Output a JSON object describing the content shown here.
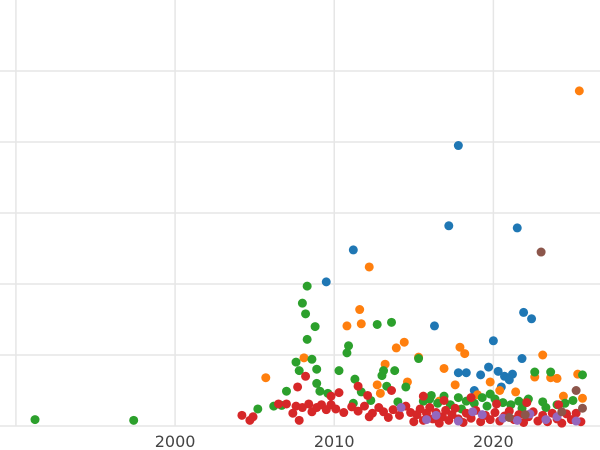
{
  "chart_data": {
    "type": "scatter",
    "title": "",
    "xlabel": "",
    "ylabel": "",
    "grid": true,
    "legend": "none",
    "xlim": [
      1989,
      2026.7
    ],
    "ylim": [
      0,
      60
    ],
    "x_ticks": [
      {
        "value": 2000,
        "label": "2000"
      },
      {
        "value": 2010,
        "label": "2010"
      },
      {
        "value": 2020,
        "label": "2020"
      }
    ],
    "y_gridlines": [
      0,
      10,
      20,
      30,
      40,
      50
    ],
    "x_gridlines": [
      1990,
      2000,
      2010,
      2020
    ],
    "series": [
      {
        "color": "#1f77b4",
        "points": [
          [
            2009.5,
            20.3
          ],
          [
            2011.2,
            24.8
          ],
          [
            2016.3,
            14.1
          ],
          [
            2017.2,
            28.2
          ],
          [
            2017.8,
            39.5
          ],
          [
            2018.3,
            7.5
          ],
          [
            2019.2,
            7.2
          ],
          [
            2019.7,
            8.3
          ],
          [
            2020.0,
            12.0
          ],
          [
            2020.3,
            7.7
          ],
          [
            2020.7,
            7.0
          ],
          [
            2021.2,
            7.3
          ],
          [
            2021.5,
            27.9
          ],
          [
            2021.8,
            9.5
          ],
          [
            2021.9,
            16.0
          ],
          [
            2022.4,
            15.1
          ],
          [
            2017.8,
            7.5
          ],
          [
            2018.8,
            5.0
          ],
          [
            2020.5,
            5.5
          ],
          [
            2021.0,
            6.5
          ]
        ]
      },
      {
        "color": "#ff7f0e",
        "points": [
          [
            2005.7,
            6.8
          ],
          [
            2008.1,
            9.6
          ],
          [
            2010.8,
            14.1
          ],
          [
            2011.6,
            16.4
          ],
          [
            2011.7,
            14.4
          ],
          [
            2012.2,
            22.4
          ],
          [
            2012.7,
            5.8
          ],
          [
            2013.2,
            8.7
          ],
          [
            2013.9,
            11.0
          ],
          [
            2014.4,
            11.8
          ],
          [
            2015.3,
            9.7
          ],
          [
            2016.9,
            8.1
          ],
          [
            2017.6,
            5.8
          ],
          [
            2017.9,
            11.1
          ],
          [
            2018.2,
            10.2
          ],
          [
            2019.0,
            4.4
          ],
          [
            2019.8,
            6.2
          ],
          [
            2020.4,
            5.0
          ],
          [
            2022.0,
            3.3
          ],
          [
            2022.6,
            6.9
          ],
          [
            2023.1,
            10.0
          ],
          [
            2023.6,
            6.8
          ],
          [
            2024.0,
            6.7
          ],
          [
            2025.3,
            7.3
          ],
          [
            2025.4,
            47.2
          ],
          [
            2025.6,
            3.9
          ],
          [
            2014.6,
            6.2
          ],
          [
            2016.6,
            3.5
          ],
          [
            2018.6,
            3.8
          ],
          [
            2021.4,
            4.8
          ],
          [
            2024.4,
            4.2
          ],
          [
            2012.9,
            4.6
          ]
        ]
      },
      {
        "color": "#2ca02c",
        "points": [
          [
            1991.2,
            0.9
          ],
          [
            1997.4,
            0.8
          ],
          [
            2005.2,
            2.4
          ],
          [
            2006.2,
            2.8
          ],
          [
            2006.7,
            2.9
          ],
          [
            2007.0,
            4.9
          ],
          [
            2007.6,
            9.0
          ],
          [
            2007.8,
            7.8
          ],
          [
            2008.0,
            17.3
          ],
          [
            2008.2,
            15.8
          ],
          [
            2008.3,
            19.7
          ],
          [
            2008.3,
            12.2
          ],
          [
            2008.6,
            9.4
          ],
          [
            2008.8,
            14.0
          ],
          [
            2008.9,
            8.0
          ],
          [
            2008.9,
            6.0
          ],
          [
            2009.1,
            4.9
          ],
          [
            2009.6,
            4.6
          ],
          [
            2010.3,
            7.8
          ],
          [
            2010.8,
            10.3
          ],
          [
            2010.9,
            11.3
          ],
          [
            2011.2,
            3.2
          ],
          [
            2011.3,
            6.6
          ],
          [
            2011.7,
            4.8
          ],
          [
            2012.3,
            3.6
          ],
          [
            2012.7,
            14.3
          ],
          [
            2013.0,
            7.1
          ],
          [
            2013.1,
            7.8
          ],
          [
            2013.3,
            5.6
          ],
          [
            2013.6,
            14.6
          ],
          [
            2013.8,
            7.8
          ],
          [
            2014.5,
            5.5
          ],
          [
            2015.3,
            9.5
          ],
          [
            2015.6,
            3.5
          ],
          [
            2016.1,
            4.3
          ],
          [
            2016.5,
            3.2
          ],
          [
            2016.9,
            4.2
          ],
          [
            2017.3,
            3.0
          ],
          [
            2017.8,
            4.0
          ],
          [
            2018.3,
            3.5
          ],
          [
            2018.8,
            3.2
          ],
          [
            2019.3,
            4.0
          ],
          [
            2019.8,
            4.5
          ],
          [
            2020.1,
            3.8
          ],
          [
            2020.6,
            3.3
          ],
          [
            2021.1,
            3.0
          ],
          [
            2021.6,
            3.5
          ],
          [
            2022.2,
            3.8
          ],
          [
            2022.6,
            7.6
          ],
          [
            2023.1,
            3.4
          ],
          [
            2023.6,
            7.6
          ],
          [
            2024.0,
            3.0
          ],
          [
            2024.5,
            3.2
          ],
          [
            2025.0,
            3.6
          ],
          [
            2025.6,
            7.2
          ],
          [
            2014.0,
            3.4
          ],
          [
            2016.0,
            3.8
          ],
          [
            2018.0,
            2.4
          ],
          [
            2019.6,
            2.8
          ],
          [
            2021.8,
            2.5
          ],
          [
            2023.3,
            2.6
          ]
        ]
      },
      {
        "color": "#d62728",
        "points": [
          [
            2004.2,
            1.5
          ],
          [
            2004.7,
            0.8
          ],
          [
            2004.9,
            1.3
          ],
          [
            2006.5,
            3.1
          ],
          [
            2007.0,
            3.1
          ],
          [
            2007.4,
            1.8
          ],
          [
            2007.6,
            2.8
          ],
          [
            2007.8,
            0.8
          ],
          [
            2008.0,
            2.6
          ],
          [
            2008.4,
            3.1
          ],
          [
            2008.6,
            2.0
          ],
          [
            2008.9,
            2.6
          ],
          [
            2009.2,
            3.0
          ],
          [
            2009.5,
            2.3
          ],
          [
            2009.8,
            3.0
          ],
          [
            2010.1,
            2.4
          ],
          [
            2010.6,
            1.9
          ],
          [
            2011.1,
            2.7
          ],
          [
            2011.5,
            2.1
          ],
          [
            2011.9,
            2.8
          ],
          [
            2012.2,
            1.3
          ],
          [
            2012.4,
            1.8
          ],
          [
            2012.8,
            2.6
          ],
          [
            2013.1,
            2.0
          ],
          [
            2013.4,
            1.2
          ],
          [
            2013.7,
            2.3
          ],
          [
            2014.1,
            1.5
          ],
          [
            2014.5,
            2.8
          ],
          [
            2014.8,
            1.9
          ],
          [
            2015.0,
            0.6
          ],
          [
            2015.2,
            1.6
          ],
          [
            2015.4,
            2.4
          ],
          [
            2015.6,
            0.8
          ],
          [
            2015.8,
            1.8
          ],
          [
            2016.0,
            2.6
          ],
          [
            2016.2,
            1.0
          ],
          [
            2016.4,
            1.9
          ],
          [
            2016.6,
            0.4
          ],
          [
            2016.8,
            1.3
          ],
          [
            2017.0,
            2.2
          ],
          [
            2017.2,
            0.8
          ],
          [
            2017.4,
            1.6
          ],
          [
            2017.6,
            2.5
          ],
          [
            2017.8,
            1.0
          ],
          [
            2018.1,
            0.5
          ],
          [
            2018.3,
            1.8
          ],
          [
            2018.6,
            1.1
          ],
          [
            2018.9,
            2.2
          ],
          [
            2019.2,
            0.6
          ],
          [
            2019.5,
            1.5
          ],
          [
            2019.8,
            0.9
          ],
          [
            2020.1,
            1.9
          ],
          [
            2020.4,
            0.7
          ],
          [
            2020.7,
            1.4
          ],
          [
            2021.0,
            2.1
          ],
          [
            2021.3,
            0.9
          ],
          [
            2021.6,
            1.6
          ],
          [
            2021.9,
            0.5
          ],
          [
            2022.2,
            1.3
          ],
          [
            2022.5,
            2.0
          ],
          [
            2022.8,
            0.7
          ],
          [
            2023.1,
            1.5
          ],
          [
            2023.4,
            0.6
          ],
          [
            2023.7,
            1.8
          ],
          [
            2024.0,
            1.0
          ],
          [
            2024.3,
            0.4
          ],
          [
            2024.6,
            1.7
          ],
          [
            2024.9,
            0.9
          ],
          [
            2025.2,
            1.8
          ],
          [
            2025.5,
            0.6
          ],
          [
            2010.3,
            4.7
          ],
          [
            2012.1,
            4.3
          ],
          [
            2013.6,
            5.0
          ],
          [
            2009.8,
            4.2
          ],
          [
            2007.7,
            5.5
          ],
          [
            2008.2,
            7.0
          ],
          [
            2011.5,
            5.6
          ],
          [
            2015.6,
            4.2
          ],
          [
            2016.9,
            3.6
          ],
          [
            2018.6,
            4.0
          ],
          [
            2020.2,
            3.1
          ],
          [
            2022.1,
            3.3
          ],
          [
            2024.1,
            3.0
          ]
        ]
      },
      {
        "color": "#9467bd",
        "points": [
          [
            2014.2,
            2.6
          ],
          [
            2016.4,
            1.5
          ],
          [
            2017.8,
            0.7
          ],
          [
            2019.3,
            1.6
          ],
          [
            2020.6,
            1.1
          ],
          [
            2021.5,
            0.8
          ],
          [
            2022.3,
            1.7
          ],
          [
            2023.3,
            0.9
          ],
          [
            2024.0,
            1.3
          ],
          [
            2025.2,
            0.7
          ],
          [
            2015.8,
            0.9
          ],
          [
            2018.7,
            2.0
          ]
        ]
      },
      {
        "color": "#8c564b",
        "points": [
          [
            2022.0,
            1.6
          ],
          [
            2023.0,
            24.5
          ],
          [
            2024.3,
            2.0
          ],
          [
            2025.2,
            5.0
          ],
          [
            2021.0,
            1.2
          ],
          [
            2025.6,
            2.5
          ]
        ]
      }
    ]
  }
}
